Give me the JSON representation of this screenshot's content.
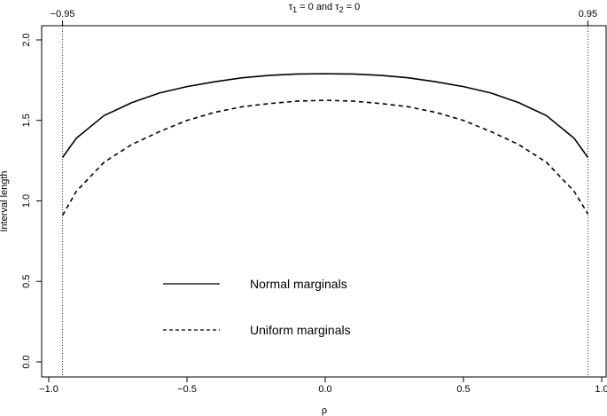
{
  "chart_data": {
    "type": "line",
    "title": "τ1 = 0 and τ2 = 0",
    "title_parts": {
      "a": "τ",
      "a_sub": "1",
      "mid": " = 0 and ",
      "b": "τ",
      "b_sub": "2",
      "end": " = 0"
    },
    "xlabel": "ρ",
    "ylabel": "Interval length",
    "xlim": [
      -1.0,
      1.0
    ],
    "ylim": [
      0.0,
      2.0
    ],
    "x_ticks": [
      -1.0,
      -0.5,
      0.0,
      0.5,
      1.0
    ],
    "x_tick_labels": [
      "−1.0",
      "−0.5",
      "0.0",
      "0.5",
      "1.0"
    ],
    "y_ticks": [
      0.0,
      0.5,
      1.0,
      1.5,
      2.0
    ],
    "y_tick_labels": [
      "0.0",
      "0.5",
      "1.0",
      "1.5",
      "2.0"
    ],
    "top_ticks": [
      -0.95,
      0.95
    ],
    "top_tick_labels": [
      "−0.95",
      "0.95"
    ],
    "vlines": [
      -0.95,
      0.95
    ],
    "grid": false,
    "legend_position": "bottom-left",
    "x": [
      -0.95,
      -0.9,
      -0.8,
      -0.7,
      -0.6,
      -0.5,
      -0.4,
      -0.3,
      -0.2,
      -0.1,
      0.0,
      0.1,
      0.2,
      0.3,
      0.4,
      0.5,
      0.6,
      0.7,
      0.8,
      0.9,
      0.95
    ],
    "series": [
      {
        "name": "Normal marginals",
        "style": "solid",
        "values": [
          1.27,
          1.39,
          1.53,
          1.61,
          1.67,
          1.71,
          1.74,
          1.765,
          1.78,
          1.788,
          1.79,
          1.788,
          1.78,
          1.765,
          1.74,
          1.71,
          1.67,
          1.61,
          1.53,
          1.39,
          1.27
        ]
      },
      {
        "name": "Uniform marginals",
        "style": "dashed",
        "values": [
          0.91,
          1.06,
          1.24,
          1.35,
          1.43,
          1.5,
          1.55,
          1.585,
          1.605,
          1.62,
          1.625,
          1.62,
          1.605,
          1.585,
          1.55,
          1.5,
          1.43,
          1.35,
          1.24,
          1.06,
          0.92
        ]
      }
    ]
  }
}
